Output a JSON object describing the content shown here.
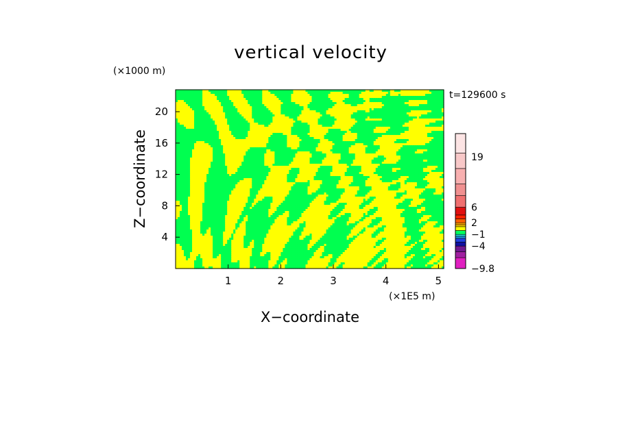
{
  "chart_data": {
    "type": "heatmap",
    "title": "vertical velocity",
    "xlabel": "X−coordinate",
    "ylabel": "Z−coordinate",
    "x_unit": "(×1E5 m)",
    "y_unit": "(×1000 m)",
    "time_label": "t=129600 s",
    "xlim": [
      0,
      5.1
    ],
    "ylim": [
      0,
      22.8
    ],
    "x_ticks": [
      "1",
      "2",
      "3",
      "4",
      "5"
    ],
    "x_tick_values": [
      1,
      2,
      3,
      4,
      5
    ],
    "y_ticks": [
      "4",
      "8",
      "12",
      "16",
      "20"
    ],
    "y_tick_values": [
      4,
      8,
      12,
      16,
      20
    ],
    "colorbar": {
      "range": [
        -9.8,
        25
      ],
      "labels": [
        "19",
        "6",
        "2",
        "−1",
        "−4",
        "−9.8"
      ],
      "label_values": [
        19,
        6,
        2,
        -1,
        -4,
        -9.8
      ],
      "levels": [
        {
          "from": -9.8,
          "to": -7,
          "color": "#e020c0"
        },
        {
          "from": -7,
          "to": -5.5,
          "color": "#a020a0"
        },
        {
          "from": -5.5,
          "to": -4,
          "color": "#701890"
        },
        {
          "from": -4,
          "to": -3,
          "color": "#1010a0"
        },
        {
          "from": -3,
          "to": -2,
          "color": "#2040e0"
        },
        {
          "from": -2,
          "to": -1.5,
          "color": "#20a0f0"
        },
        {
          "from": -1.5,
          "to": -1,
          "color": "#20d0d0"
        },
        {
          "from": -1,
          "to": 0,
          "color": "#00ff60"
        },
        {
          "from": 0,
          "to": 1,
          "color": "#ffff00"
        },
        {
          "from": 1,
          "to": 1.5,
          "color": "#ffd000"
        },
        {
          "from": 1.5,
          "to": 2,
          "color": "#ffa000"
        },
        {
          "from": 2,
          "to": 3,
          "color": "#ff6000"
        },
        {
          "from": 3,
          "to": 4,
          "color": "#ff2000"
        },
        {
          "from": 4,
          "to": 6,
          "color": "#e01010"
        },
        {
          "from": 6,
          "to": 9,
          "color": "#f07070"
        },
        {
          "from": 9,
          "to": 12,
          "color": "#f09090"
        },
        {
          "from": 12,
          "to": 16,
          "color": "#f8b0b0"
        },
        {
          "from": 16,
          "to": 20,
          "color": "#f8c8c8"
        },
        {
          "from": 20,
          "to": 25,
          "color": "#fce4e4"
        }
      ]
    },
    "field_colors": {
      "negative": "#00ff50",
      "positive": "#ffff00"
    },
    "field_summary": "vertical velocity field dominated by two levels: weak downward (green, −1 to 0) and weak upward (yellow, 0 to 1) bands"
  }
}
